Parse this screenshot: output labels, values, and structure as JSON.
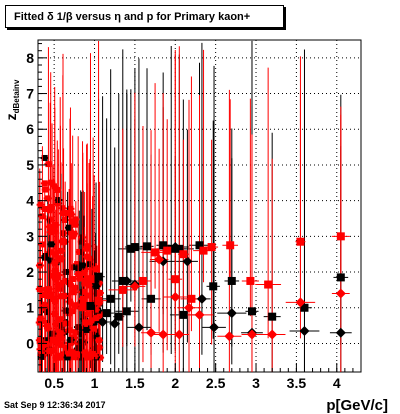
{
  "title": "Fitted δ 1/β versus η and p for Primary kaon+",
  "timestamp": "Sat Sep  9 12:36:34 2017",
  "chart_data": {
    "type": "scatter",
    "title": "Fitted δ 1/β versus η and p for Primary kaon+",
    "xlabel": "p[GeV/c]",
    "ylabel": "z_dBetainv",
    "xlim": [
      0.3,
      4.3
    ],
    "ylim": [
      -0.8,
      8.5
    ],
    "x_ticks": [
      "0.5",
      "1",
      "1.5",
      "2",
      "2.5",
      "3",
      "3.5",
      "4"
    ],
    "y_ticks": [
      "0",
      "1",
      "2",
      "3",
      "4",
      "5",
      "6",
      "7",
      "8"
    ],
    "grid": true,
    "colors": {
      "black": "#000000",
      "red": "#ff0000"
    },
    "series": [
      {
        "color": "black",
        "marker": "square",
        "points": [
          [
            1.05,
            1.87
          ],
          [
            1.2,
            1.25
          ],
          [
            1.35,
            1.75
          ],
          [
            1.45,
            2.65
          ],
          [
            1.5,
            2.7
          ],
          [
            1.65,
            2.72
          ],
          [
            1.85,
            2.75
          ],
          [
            1.95,
            2.65
          ],
          [
            2.05,
            2.65
          ],
          [
            2.3,
            2.75
          ],
          [
            2.47,
            1.6
          ],
          [
            2.7,
            1.75
          ],
          [
            2.95,
            0.9
          ],
          [
            3.2,
            0.75
          ],
          [
            3.6,
            1.0
          ],
          [
            4.05,
            1.85
          ],
          [
            0.95,
            1.05
          ],
          [
            1.15,
            0.85
          ],
          [
            1.3,
            0.75
          ],
          [
            1.4,
            0.9
          ],
          [
            1.7,
            1.25
          ],
          [
            2.1,
            0.8
          ]
        ]
      },
      {
        "color": "black",
        "marker": "diamond",
        "points": [
          [
            1.4,
            1.75
          ],
          [
            1.5,
            1.65
          ],
          [
            1.85,
            2.3
          ],
          [
            2.0,
            2.7
          ],
          [
            2.15,
            2.3
          ],
          [
            2.33,
            1.25
          ],
          [
            2.48,
            0.45
          ],
          [
            2.7,
            0.85
          ],
          [
            2.95,
            0.3
          ],
          [
            3.6,
            0.35
          ],
          [
            4.05,
            0.3
          ],
          [
            1.1,
            0.6
          ],
          [
            1.25,
            0.55
          ],
          [
            1.55,
            0.45
          ]
        ]
      },
      {
        "color": "red",
        "marker": "square",
        "points": [
          [
            1.9,
            2.6
          ],
          [
            2.1,
            2.5
          ],
          [
            2.35,
            2.6
          ],
          [
            2.45,
            2.7
          ],
          [
            2.68,
            2.75
          ],
          [
            2.93,
            1.75
          ],
          [
            3.15,
            1.65
          ],
          [
            3.55,
            2.85
          ],
          [
            4.05,
            3.0
          ],
          [
            0.95,
            1.8
          ],
          [
            1.05,
            1.2
          ],
          [
            1.35,
            1.5
          ],
          [
            1.6,
            1.75
          ],
          [
            1.75,
            2.55
          ],
          [
            2.0,
            1.8
          ],
          [
            2.2,
            1.25
          ]
        ]
      },
      {
        "color": "red",
        "marker": "diamond",
        "points": [
          [
            1.5,
            1.6
          ],
          [
            1.8,
            2.35
          ],
          [
            2.0,
            1.3
          ],
          [
            2.17,
            1.0
          ],
          [
            2.3,
            0.8
          ],
          [
            2.67,
            0.2
          ],
          [
            2.95,
            0.25
          ],
          [
            3.2,
            0.25
          ],
          [
            3.55,
            1.15
          ],
          [
            4.05,
            1.4
          ],
          [
            1.7,
            0.3
          ],
          [
            1.85,
            0.25
          ],
          [
            2.05,
            0.25
          ]
        ]
      }
    ]
  }
}
